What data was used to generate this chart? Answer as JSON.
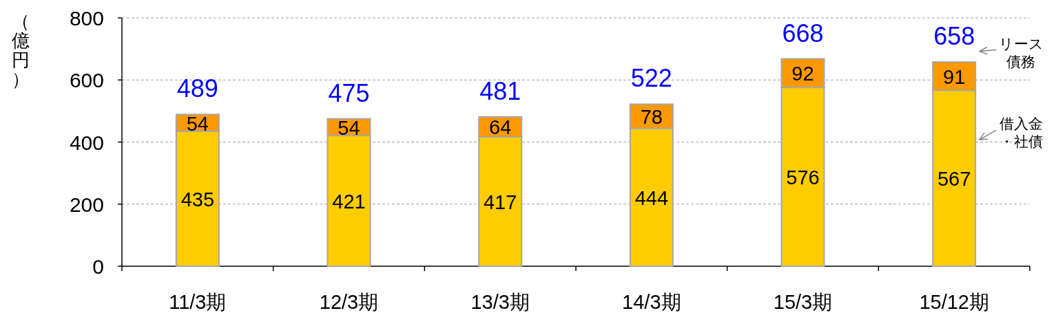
{
  "chart_data": {
    "type": "bar",
    "stacked": true,
    "ylabel": "（億円）",
    "categories": [
      "11/3期",
      "12/3期",
      "13/3期",
      "14/3期",
      "15/3期",
      "15/12期"
    ],
    "series": [
      {
        "name": "借入金・社債",
        "color": "#ffcc00",
        "values": [
          435,
          421,
          417,
          444,
          576,
          567
        ]
      },
      {
        "name": "リース債務",
        "color": "#ff9900",
        "values": [
          54,
          54,
          64,
          78,
          92,
          91
        ]
      }
    ],
    "totals": [
      "489",
      "475",
      "481",
      "522",
      "668",
      "658"
    ],
    "data_labels": true,
    "grid": "y",
    "ylim": [
      0,
      800
    ],
    "yticks": [
      0,
      200,
      400,
      600,
      800
    ]
  }
}
